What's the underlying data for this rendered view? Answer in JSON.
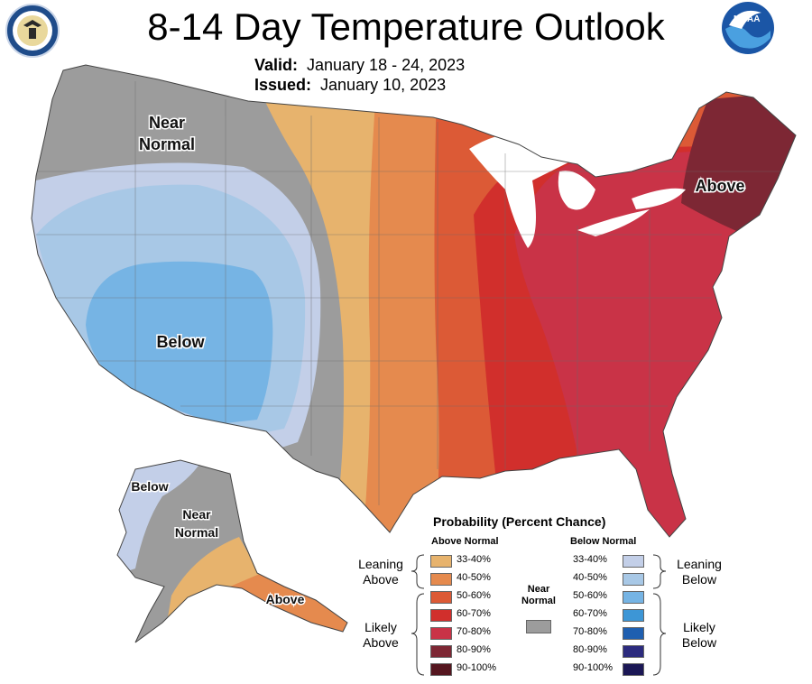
{
  "header": {
    "title": "8-14 Day Temperature Outlook",
    "valid_label": "Valid:",
    "valid_value": "January 18 - 24, 2023",
    "issued_label": "Issued:",
    "issued_value": "January 10, 2023",
    "noaa_logo_text": "NOAA"
  },
  "map": {
    "labels": {
      "near_normal": [
        "Near",
        "Normal"
      ],
      "below": "Below",
      "above": "Above",
      "ak_below": "Below",
      "ak_near_normal": [
        "Near",
        "Normal"
      ],
      "ak_above": "Above"
    },
    "colors": {
      "near_normal": "#9c9c9c",
      "below_33_40": "#c3cfe8",
      "below_40_50": "#a8c8e6",
      "below_50_60": "#76b4e4",
      "above_33_40": "#e7b36d",
      "above_40_50": "#e58a4e",
      "above_50_60": "#dc5a36",
      "above_60_70": "#d12f2c",
      "above_70_80": "#c93347",
      "above_80_90": "#7d2734"
    }
  },
  "legend": {
    "title": "Probability (Percent Chance)",
    "above_header": "Above Normal",
    "below_header": "Below Normal",
    "above": [
      {
        "label": "33-40%",
        "color": "#e7b36d"
      },
      {
        "label": "40-50%",
        "color": "#e58a4e"
      },
      {
        "label": "50-60%",
        "color": "#dc5a36"
      },
      {
        "label": "60-70%",
        "color": "#d12f2c"
      },
      {
        "label": "70-80%",
        "color": "#c93347"
      },
      {
        "label": "80-90%",
        "color": "#7d2734"
      },
      {
        "label": "90-100%",
        "color": "#55161f"
      }
    ],
    "below": [
      {
        "label": "33-40%",
        "color": "#c3cfe8"
      },
      {
        "label": "40-50%",
        "color": "#a8c8e6"
      },
      {
        "label": "50-60%",
        "color": "#76b4e4"
      },
      {
        "label": "60-70%",
        "color": "#3d96d6"
      },
      {
        "label": "70-80%",
        "color": "#1f5fb0"
      },
      {
        "label": "80-90%",
        "color": "#2c2b7e"
      },
      {
        "label": "90-100%",
        "color": "#1b1755"
      }
    ],
    "leaning_above": [
      "Leaning",
      "Above"
    ],
    "likely_above": [
      "Likely",
      "Above"
    ],
    "leaning_below": [
      "Leaning",
      "Below"
    ],
    "likely_below": [
      "Likely",
      "Below"
    ],
    "near_normal": [
      "Near",
      "Normal"
    ],
    "near_normal_color": "#9c9c9c"
  }
}
